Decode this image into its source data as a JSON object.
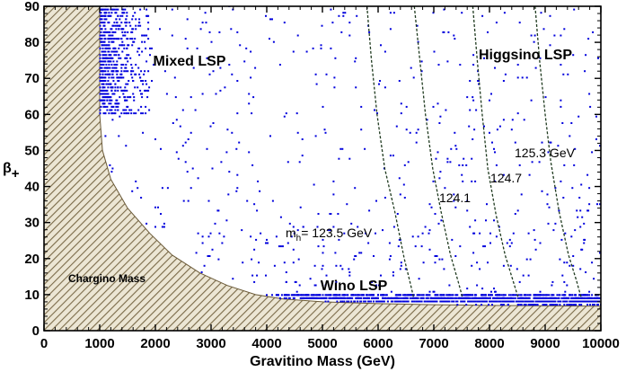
{
  "chart_data": {
    "type": "scatter",
    "xlabel": "Gravitino Mass (GeV)",
    "ylabel_main": "β",
    "ylabel_sub": "+",
    "xlim": [
      0,
      10000
    ],
    "ylim": [
      0,
      90
    ],
    "xticks": [
      "0",
      "1000",
      "2000",
      "3000",
      "4000",
      "5000",
      "6000",
      "7000",
      "8000",
      "9000",
      "10000"
    ],
    "yticks": [
      "0",
      "10",
      "20",
      "30",
      "40",
      "50",
      "60",
      "70",
      "80",
      "90"
    ],
    "grid": false,
    "point_color": "#0000dd",
    "excluded_region": {
      "label": "Chargino Mass",
      "boundary": [
        [
          1000,
          90
        ],
        [
          1000,
          60
        ],
        [
          1050,
          50
        ],
        [
          1200,
          42
        ],
        [
          1500,
          34
        ],
        [
          1900,
          27
        ],
        [
          2300,
          21
        ],
        [
          2800,
          16
        ],
        [
          3300,
          12.5
        ],
        [
          3800,
          10
        ],
        [
          4300,
          8.8
        ],
        [
          5000,
          8
        ],
        [
          6000,
          7.5
        ],
        [
          7000,
          7.2
        ],
        [
          8000,
          7.0
        ],
        [
          10000,
          6.8
        ]
      ]
    },
    "contours": [
      {
        "label": "m_h= 123.5 GeV",
        "points": [
          [
            5800,
            90
          ],
          [
            5880,
            75
          ],
          [
            5980,
            60
          ],
          [
            6120,
            45
          ],
          [
            6300,
            33
          ],
          [
            6470,
            20
          ],
          [
            6580,
            13
          ],
          [
            6640,
            9
          ]
        ]
      },
      {
        "label": "124.1",
        "points": [
          [
            6650,
            90
          ],
          [
            6750,
            75
          ],
          [
            6850,
            60
          ],
          [
            6980,
            45
          ],
          [
            7130,
            33
          ],
          [
            7300,
            21
          ],
          [
            7430,
            14
          ],
          [
            7520,
            9
          ]
        ]
      },
      {
        "label": "124.7",
        "points": [
          [
            7700,
            90
          ],
          [
            7780,
            75
          ],
          [
            7870,
            60
          ],
          [
            7970,
            45
          ],
          [
            8120,
            32
          ],
          [
            8280,
            21
          ],
          [
            8420,
            14
          ],
          [
            8520,
            9
          ]
        ]
      },
      {
        "label": "125.3 GeV",
        "points": [
          [
            8820,
            90
          ],
          [
            8900,
            75
          ],
          [
            9000,
            60
          ],
          [
            9100,
            47
          ],
          [
            9250,
            33
          ],
          [
            9420,
            21
          ],
          [
            9560,
            14
          ],
          [
            9650,
            9
          ]
        ]
      }
    ],
    "region_labels": [
      {
        "text": "Mixed LSP",
        "x": 2450,
        "y": 74
      },
      {
        "text": "Higgsino LSP",
        "x": 9100,
        "y": 76
      },
      {
        "text": "Wino LSP",
        "x": 5300,
        "y": 11
      }
    ],
    "contour_label_positions": [
      {
        "text": "m_h= 123.5 GeV",
        "x": 5300,
        "y": 26
      },
      {
        "text": "124.1",
        "x": 7150,
        "y": 36
      },
      {
        "text": "124.7",
        "x": 8160,
        "y": 41
      },
      {
        "text": "125.3 GeV",
        "x": 9000,
        "y": 48
      }
    ],
    "scatter_regions": [
      {
        "name": "dense-upper-left",
        "x_range": [
          1000,
          1900
        ],
        "y_range": [
          60,
          90
        ],
        "count": 600
      },
      {
        "name": "dense-bottom-band",
        "x_range": [
          3400,
          10000
        ],
        "y_range": [
          2.5,
          10
        ],
        "count": 1200
      },
      {
        "name": "sparse-fill",
        "x_range": [
          1000,
          10000
        ],
        "y_range": [
          9,
          90
        ],
        "count": 650
      }
    ],
    "contour_labels": {
      "m_h_prefix": "m",
      "m_h_sub": "h",
      "m_h_rest": "= 123.5 GeV",
      "c2": "124.1",
      "c3": "124.7",
      "c4": "125.3 GeV"
    }
  }
}
